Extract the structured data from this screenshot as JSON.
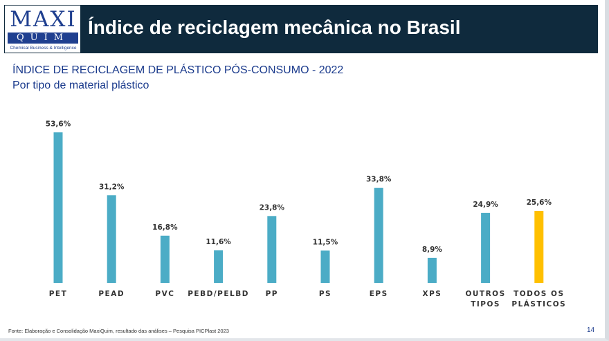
{
  "header": {
    "title": "Índice de reciclagem mecânica no Brasil",
    "logo_top": "MAXI",
    "logo_bottom": "QUIM",
    "logo_tagline": "Chemical Business & Intelligence"
  },
  "colors": {
    "banner": "#0f2a3d",
    "bar": "#4bacc6",
    "highlight_bar": "#ffc000",
    "subtitle": "#1a3a8c"
  },
  "chart_data": {
    "type": "bar",
    "title": "ÍNDICE DE RECICLAGEM DE PLÁSTICO PÓS-CONSUMO - 2022",
    "subtitle": "Por tipo de material plástico",
    "categories": [
      [
        "PET"
      ],
      [
        "PEAD"
      ],
      [
        "PVC"
      ],
      [
        "PEBD/PELBD"
      ],
      [
        "PP"
      ],
      [
        "PS"
      ],
      [
        "EPS"
      ],
      [
        "XPS"
      ],
      [
        "OUTROS",
        "TIPOS"
      ],
      [
        "TODOS OS",
        "PLÁSTICOS"
      ]
    ],
    "values": [
      53.6,
      31.2,
      16.8,
      11.6,
      23.8,
      11.5,
      33.8,
      8.9,
      24.9,
      25.6
    ],
    "data_labels": [
      "53,6%",
      "31,2%",
      "16,8%",
      "11,6%",
      "23,8%",
      "11,5%",
      "33,8%",
      "8,9%",
      "24,9%",
      "25,6%"
    ],
    "highlight_index": 9,
    "xlabel": "",
    "ylabel": "",
    "ylim": [
      0,
      60
    ],
    "grid": false,
    "legend": "none"
  },
  "footer": {
    "source": "Fonte: Elaboração e Consolidação MaxiQuim, resultado das análises – Pesquisa PICPlast 2023",
    "page": "14"
  }
}
